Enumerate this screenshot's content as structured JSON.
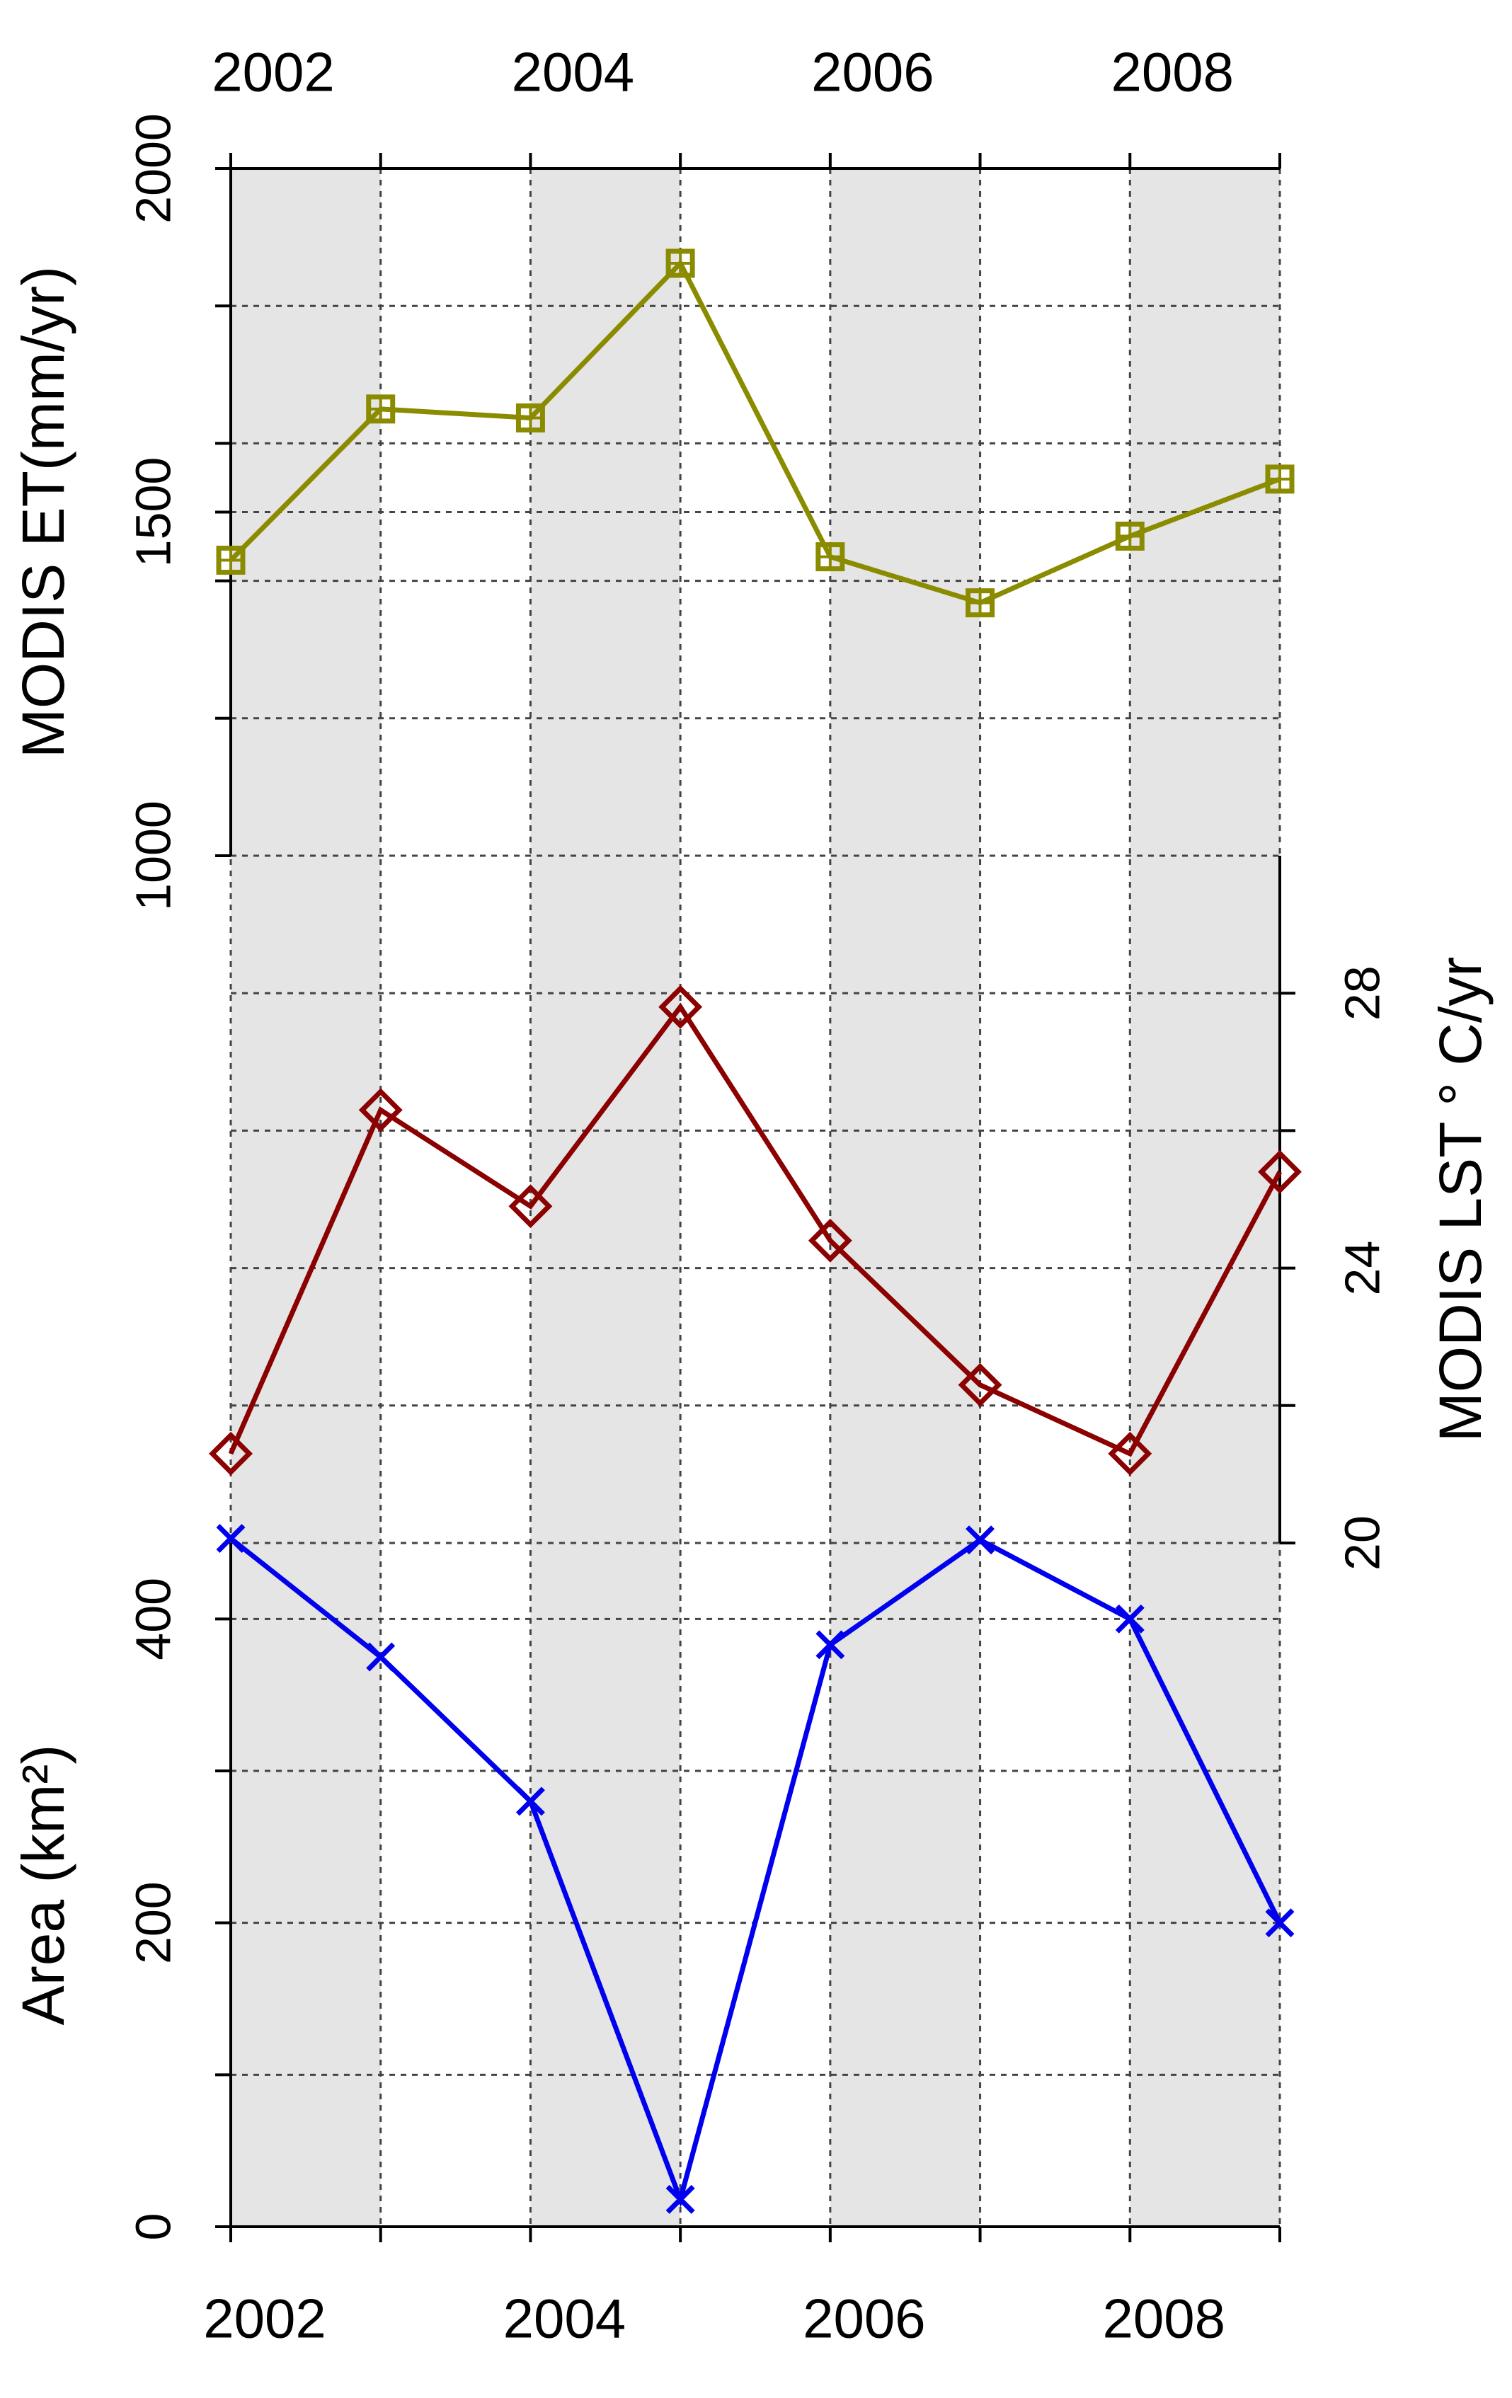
{
  "chart_data": [
    {
      "type": "line",
      "panel": "top",
      "ylabel": "MODIS ET(mm/yr)",
      "y_axis_side": "left",
      "ylim": [
        1000,
        2000
      ],
      "yticks": [
        1000,
        1500,
        2000
      ],
      "minor_gridlines": [
        1200,
        1400,
        1600,
        1800
      ],
      "x": [
        2002,
        2003,
        2004,
        2005,
        2006,
        2007,
        2008,
        2009
      ],
      "series": [
        {
          "values": [
            1430,
            1650,
            1637,
            1862,
            1435,
            1368,
            1465,
            1548
          ],
          "color": "#8b8b00",
          "marker": "square"
        }
      ]
    },
    {
      "type": "line",
      "panel": "middle",
      "ylabel": "MODIS LST ° C/yr",
      "y_axis_side": "right",
      "ylim": [
        20,
        30
      ],
      "yticks": [
        20,
        24,
        28
      ],
      "minor_gridlines": [
        22,
        26
      ],
      "x": [
        2002,
        2003,
        2004,
        2005,
        2006,
        2007,
        2008,
        2009
      ],
      "series": [
        {
          "values": [
            21.3,
            26.3,
            24.9,
            27.8,
            24.4,
            22.3,
            21.3,
            25.4
          ],
          "color": "#8b0000",
          "marker": "diamond"
        }
      ]
    },
    {
      "type": "line",
      "panel": "bottom",
      "ylabel": "Area (km²)",
      "y_axis_side": "left",
      "ylim": [
        0,
        450
      ],
      "yticks": [
        0,
        200,
        400
      ],
      "minor_gridlines": [
        100,
        300
      ],
      "x": [
        2002,
        2003,
        2004,
        2005,
        2006,
        2007,
        2008,
        2009
      ],
      "series": [
        {
          "values": [
            453,
            375,
            280,
            18,
            383,
            452,
            400,
            200
          ],
          "color": "#0000ee",
          "marker": "x"
        }
      ]
    }
  ],
  "x_axis": {
    "xlim": [
      2002,
      2009
    ],
    "tick_labels": [
      "2002",
      "2004",
      "2006",
      "2008"
    ],
    "tick_years": [
      2002,
      2004,
      2006,
      2008
    ],
    "shaded_bands": [
      [
        2002,
        2003
      ],
      [
        2004,
        2005
      ],
      [
        2006,
        2007
      ],
      [
        2008,
        2009
      ]
    ]
  },
  "grid": true,
  "rotation": "rotated 90° counter-clockwise",
  "colors": {
    "band": "#e5e5e5",
    "grid": "#444444",
    "axis": "#000000"
  }
}
